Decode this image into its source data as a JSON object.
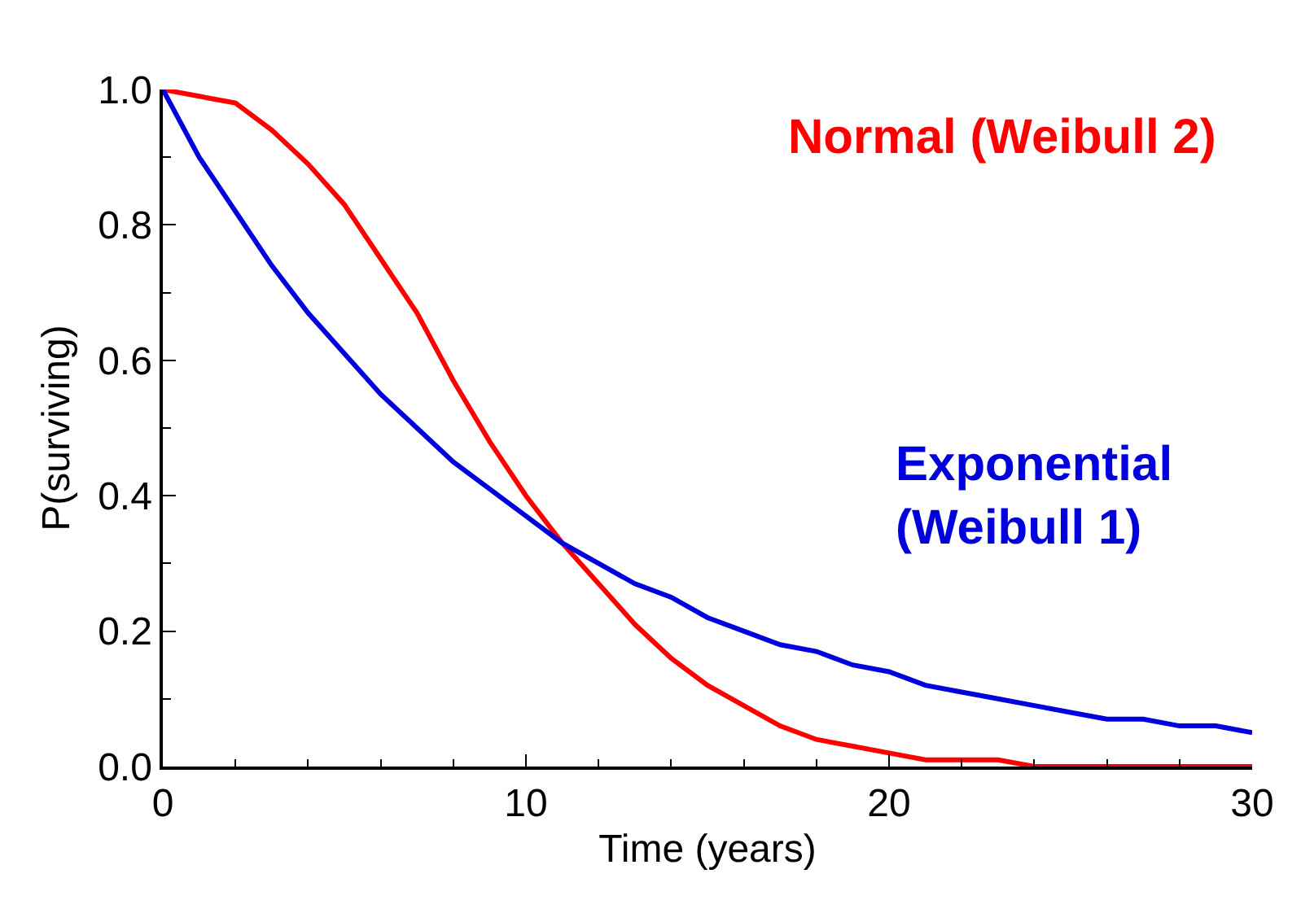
{
  "chart_data": {
    "type": "line",
    "xlabel": "Time (years)",
    "ylabel": "P(surviving)",
    "x": [
      0,
      1,
      2,
      3,
      4,
      5,
      6,
      7,
      8,
      9,
      10,
      11,
      12,
      13,
      14,
      15,
      16,
      17,
      18,
      19,
      20,
      21,
      22,
      23,
      24,
      25,
      26,
      27,
      28,
      29,
      30
    ],
    "series": [
      {
        "name": "Normal (Weibull 2)",
        "color": "#ff0000",
        "values": [
          1.0,
          0.99,
          0.98,
          0.94,
          0.89,
          0.83,
          0.75,
          0.67,
          0.57,
          0.48,
          0.4,
          0.33,
          0.27,
          0.21,
          0.16,
          0.12,
          0.09,
          0.06,
          0.04,
          0.03,
          0.02,
          0.01,
          0.01,
          0.01,
          0.0,
          0.0,
          0.0,
          0.0,
          0.0,
          0.0,
          0.0
        ]
      },
      {
        "name": "Exponential\n(Weibull 1)",
        "color": "#0000dd",
        "values": [
          1.0,
          0.9,
          0.82,
          0.74,
          0.67,
          0.61,
          0.55,
          0.5,
          0.45,
          0.41,
          0.37,
          0.33,
          0.3,
          0.27,
          0.25,
          0.22,
          0.2,
          0.18,
          0.17,
          0.15,
          0.14,
          0.12,
          0.11,
          0.1,
          0.09,
          0.08,
          0.07,
          0.07,
          0.06,
          0.06,
          0.05
        ]
      }
    ],
    "xlim": [
      0,
      30
    ],
    "xticks": [
      0,
      10,
      20,
      30
    ],
    "ylim": [
      0,
      1
    ],
    "yticks": [
      {
        "value": 0,
        "label": "0.0"
      },
      {
        "value": 0.2,
        "label": "0.2"
      },
      {
        "value": 0.4,
        "label": "0.4"
      },
      {
        "value": 0.6,
        "label": "0.6"
      },
      {
        "value": 0.8,
        "label": "0.8"
      },
      {
        "value": 1,
        "label": "1.0"
      }
    ],
    "marker": "none",
    "line_style": "solid"
  }
}
